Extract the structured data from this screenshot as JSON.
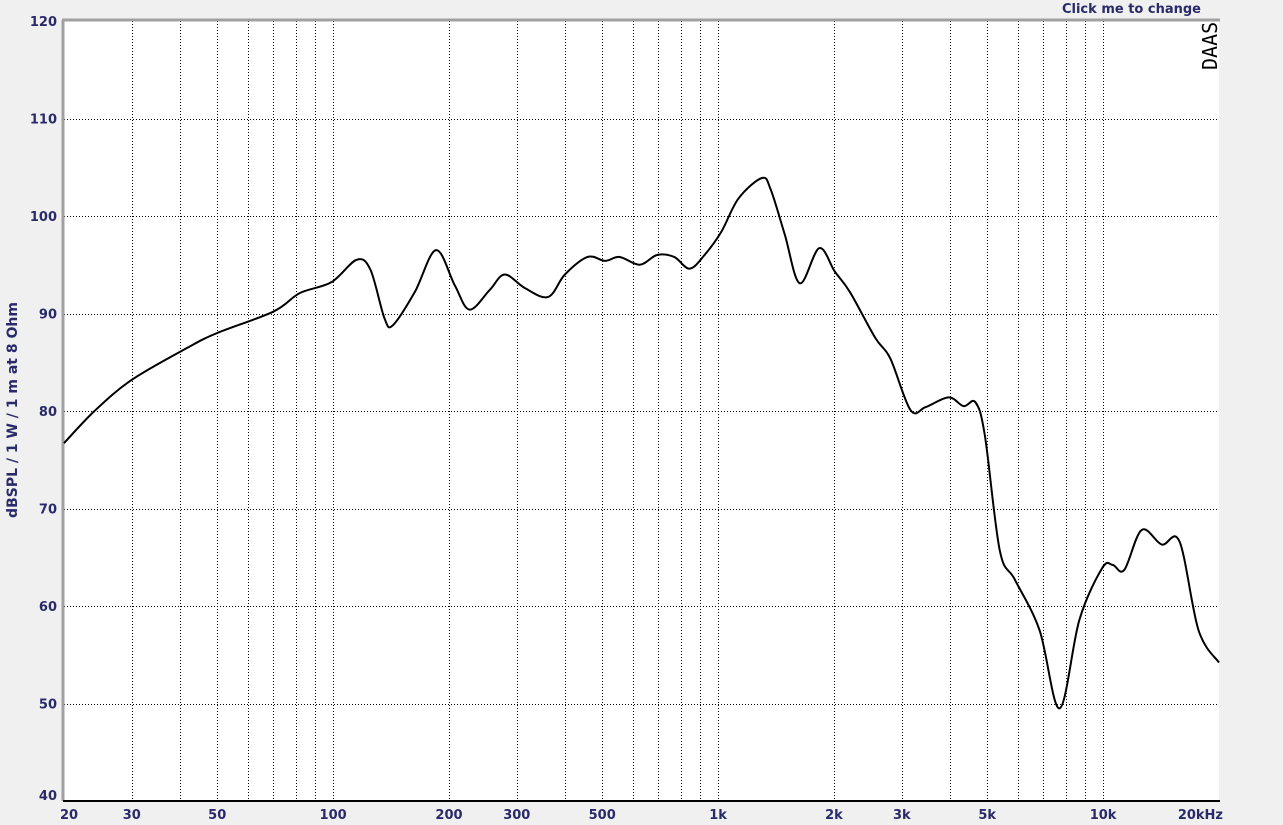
{
  "header": {
    "change_link": "Click me to change",
    "logo": "DAAS"
  },
  "chart_data": {
    "type": "line",
    "title": "",
    "xlabel": "",
    "ylabel": "dBSPL / 1 W / 1 m at 8 Ohm",
    "x_scale": "log",
    "xlim": [
      20,
      20000
    ],
    "ylim": [
      40,
      120
    ],
    "grid": true,
    "x_ticks": [
      20,
      30,
      50,
      100,
      200,
      300,
      500,
      1000,
      2000,
      3000,
      5000,
      10000,
      20000
    ],
    "x_tick_labels": [
      "20",
      "30",
      "50",
      "100",
      "200",
      "300",
      "500",
      "1k",
      "2k",
      "3k",
      "5k",
      "10k",
      "20kHz"
    ],
    "y_ticks": [
      40,
      50,
      60,
      70,
      80,
      90,
      100,
      110,
      120
    ],
    "y_tick_labels": [
      "40",
      "50",
      "60",
      "70",
      "80",
      "90",
      "100",
      "110",
      "120"
    ],
    "line_color": "#000000",
    "series": [
      {
        "x": [
          20,
          24,
          30,
          41.9,
          50,
          70,
          82,
          98.9,
          115,
          125,
          136,
          143,
          163,
          185,
          207,
          226,
          255,
          279,
          315,
          362,
          400,
          458,
          509,
          555,
          626,
          694,
          769,
          843,
          922,
          1020,
          1130,
          1300,
          1370,
          1490,
          1630,
          1830,
          2010,
          2200,
          2560,
          2800,
          3160,
          3460,
          3970,
          4340,
          4660,
          4930,
          5390,
          5900,
          6840,
          7710,
          8680,
          9950,
          10600,
          11350,
          12600,
          14200,
          15800,
          17700,
          20000
        ],
        "y": [
          76.7,
          80,
          83.2,
          86.5,
          88,
          90.2,
          92.1,
          93.2,
          95.5,
          94.5,
          89.5,
          88.8,
          92.2,
          96.5,
          92.9,
          90.4,
          92.4,
          94,
          92.6,
          91.7,
          94,
          95.8,
          95.4,
          95.8,
          95,
          96,
          95.8,
          94.6,
          96,
          98.4,
          101.8,
          103.9,
          102.7,
          98.1,
          93.1,
          96.7,
          94.3,
          92.2,
          87.5,
          85.4,
          80.1,
          80.4,
          81.4,
          80.5,
          80.9,
          77.5,
          65.7,
          62.7,
          57.5,
          49.5,
          58.6,
          63.9,
          64.2,
          63.7,
          67.8,
          66.3,
          66.6,
          57.5,
          54.2
        ]
      }
    ]
  }
}
